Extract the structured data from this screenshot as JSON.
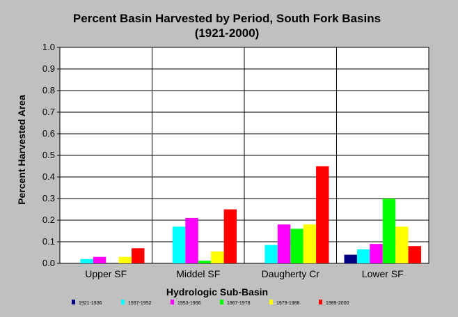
{
  "chart_data": {
    "type": "bar",
    "title": "Percent Basin Harvested by Period, South Fork Basins",
    "subtitle": "(1921-2000)",
    "xlabel": "Hydrologic Sub-Basin",
    "ylabel": "Percent Harvested Area",
    "ylim": [
      0,
      1.0
    ],
    "yticks": [
      "0.0",
      "0.1",
      "0.2",
      "0.3",
      "0.4",
      "0.5",
      "0.6",
      "0.7",
      "0.8",
      "0.9",
      "1.0"
    ],
    "grid": true,
    "legend_position": "bottom",
    "categories": [
      "Upper SF",
      "Middel SF",
      "Daugherty Cr",
      "Lower SF"
    ],
    "series": [
      {
        "name": "1921-1936",
        "color": "#000080",
        "values": [
          0,
          0,
          0,
          0.04
        ]
      },
      {
        "name": "1937-1952",
        "color": "#00ffff",
        "values": [
          0.02,
          0.17,
          0.085,
          0.065
        ]
      },
      {
        "name": "1953-1966",
        "color": "#ff00ff",
        "values": [
          0.03,
          0.21,
          0.18,
          0.09
        ]
      },
      {
        "name": "1967-1978",
        "color": "#00ff00",
        "values": [
          0,
          0.012,
          0.16,
          0.3
        ]
      },
      {
        "name": "1979-1988",
        "color": "#ffff00",
        "values": [
          0.03,
          0.055,
          0.18,
          0.17
        ]
      },
      {
        "name": "1989-2000",
        "color": "#ff0000",
        "values": [
          0.07,
          0.25,
          0.45,
          0.08
        ]
      }
    ]
  }
}
